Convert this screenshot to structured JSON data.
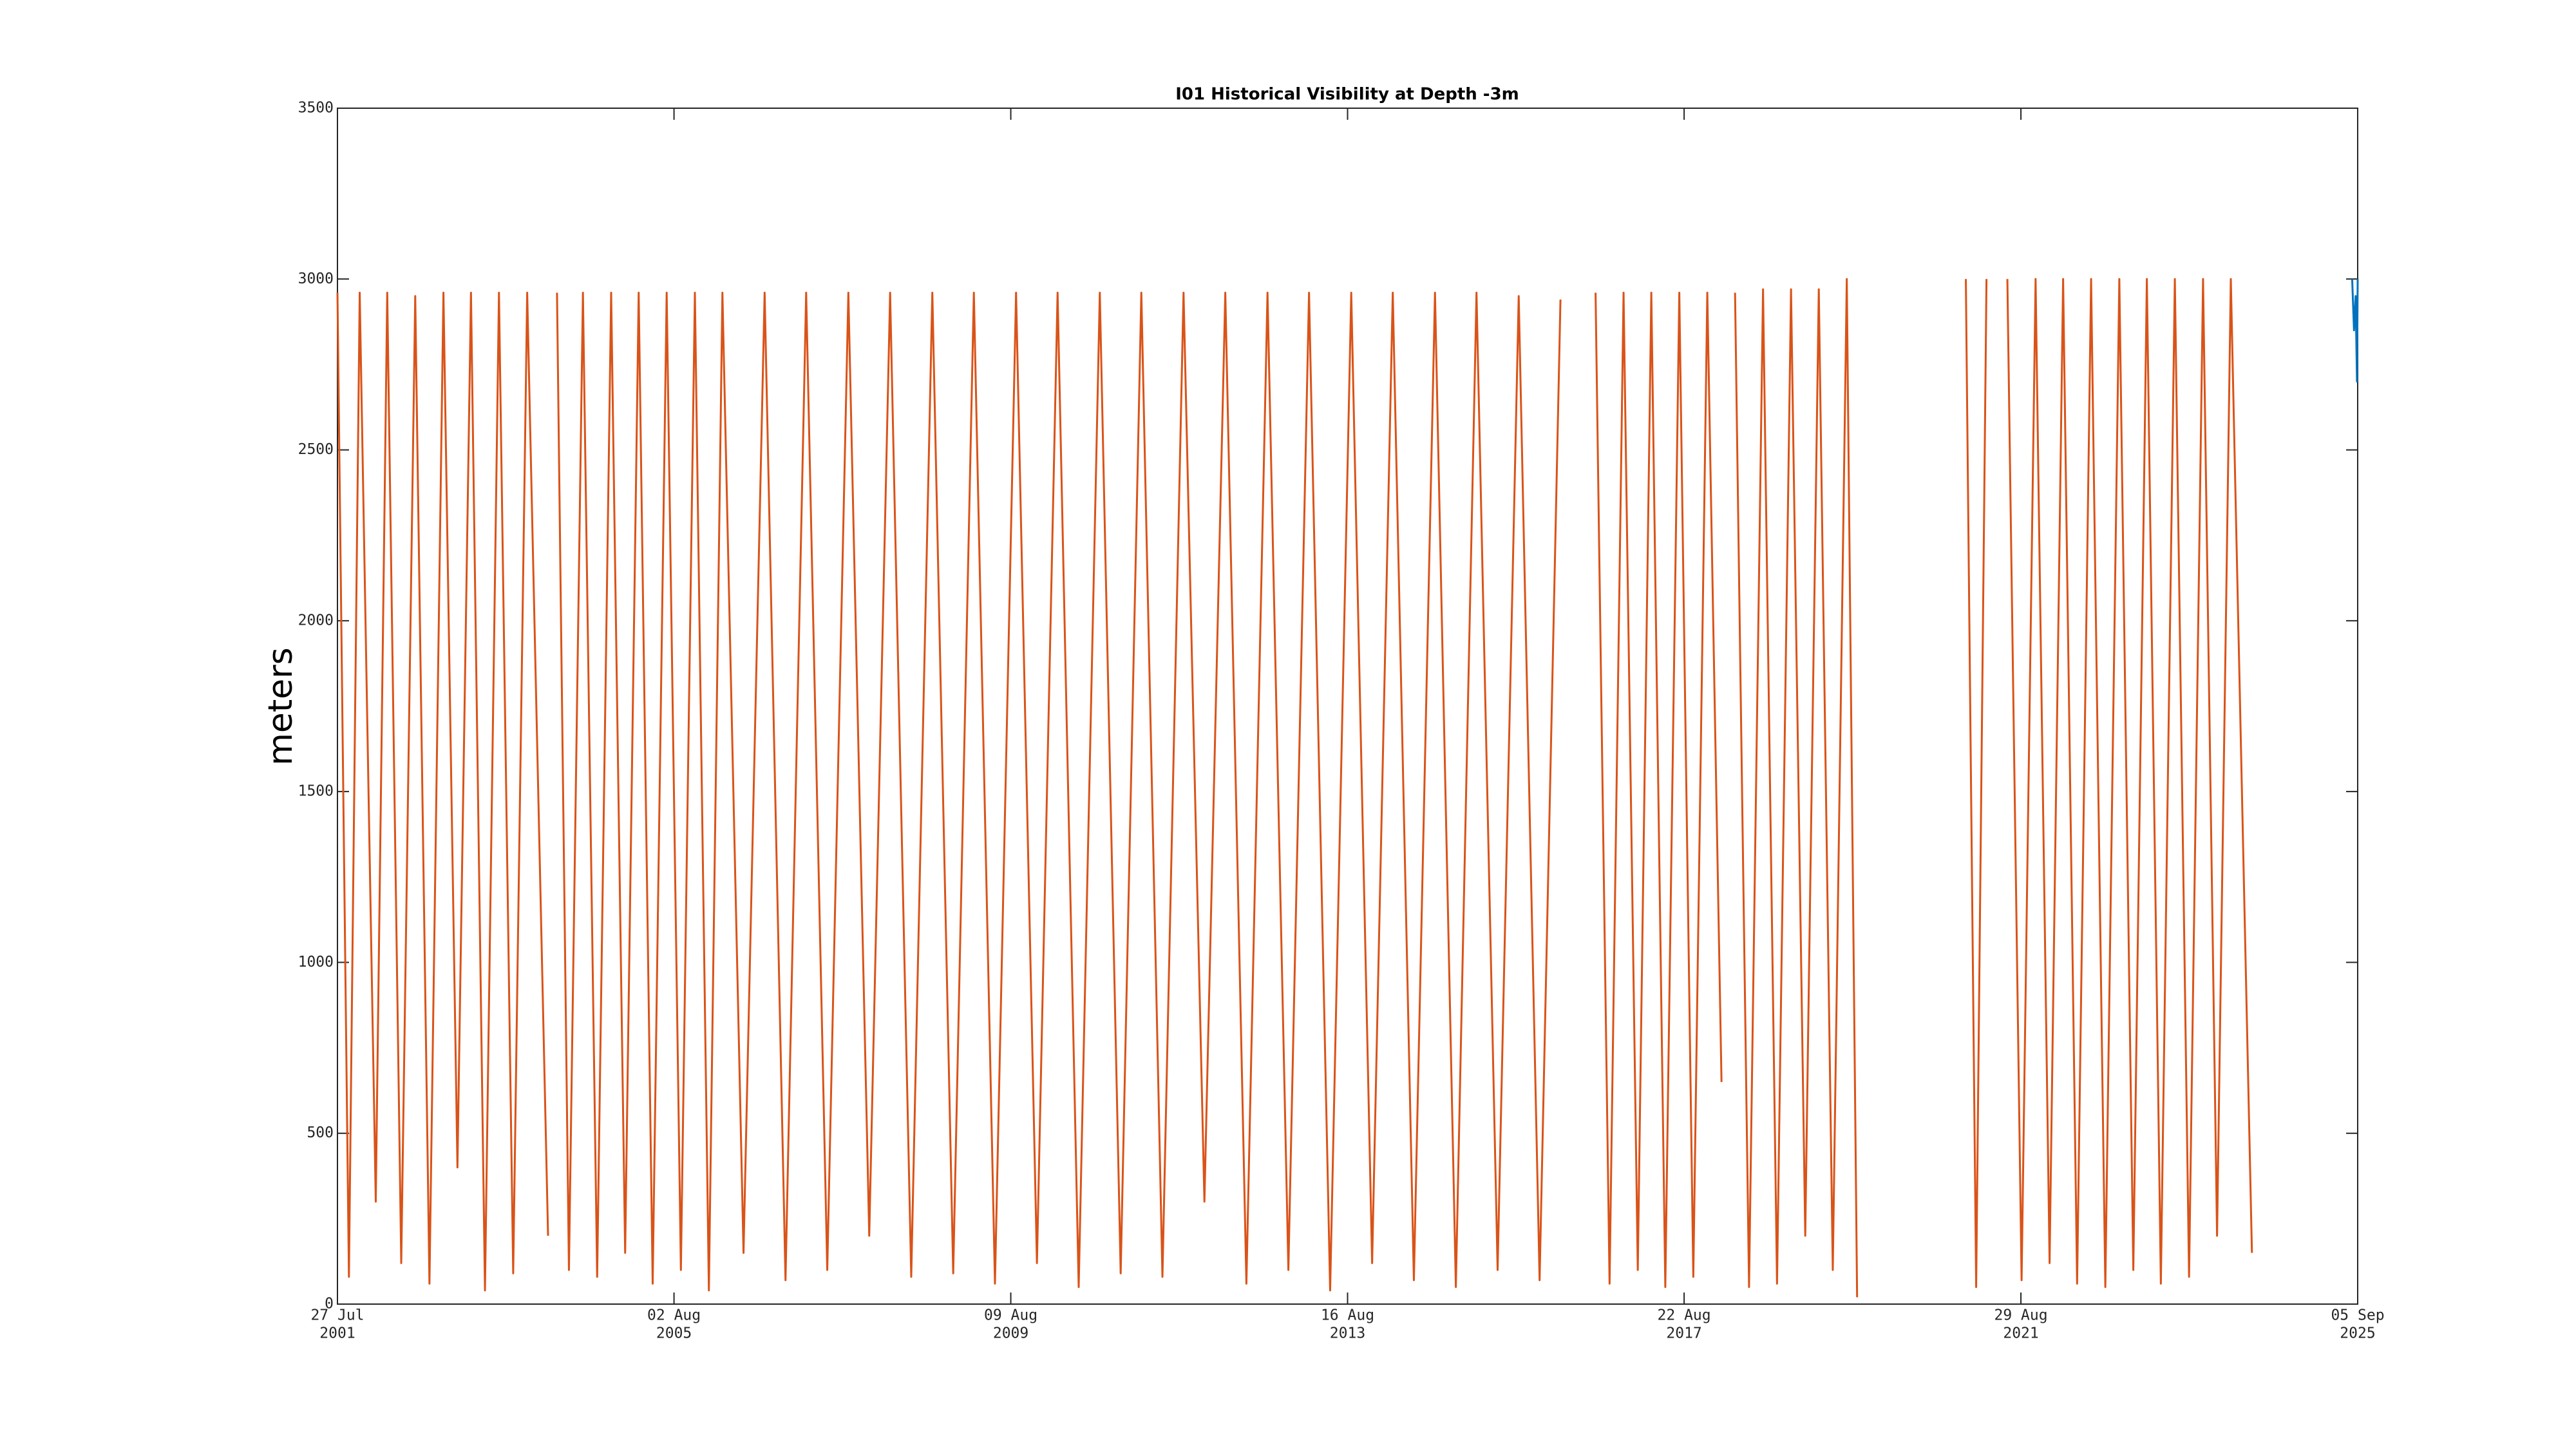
{
  "chart_data": {
    "type": "line",
    "title": "I01 Historical Visibility at Depth -3m",
    "ylabel": "meters",
    "xlim": [
      "2001-07-27",
      "2025-09-05"
    ],
    "xticks": [
      {
        "value": "2001-07-27",
        "label": [
          "27 Jul",
          "2001"
        ]
      },
      {
        "value": "2005-08-02",
        "label": [
          "02 Aug",
          "2005"
        ]
      },
      {
        "value": "2009-08-09",
        "label": [
          "09 Aug",
          "2009"
        ]
      },
      {
        "value": "2013-08-16",
        "label": [
          "16 Aug",
          "2013"
        ]
      },
      {
        "value": "2017-08-22",
        "label": [
          "22 Aug",
          "2017"
        ]
      },
      {
        "value": "2021-08-29",
        "label": [
          "29 Aug",
          "2021"
        ]
      },
      {
        "value": "2025-09-05",
        "label": [
          "05 Sep",
          "2025"
        ]
      }
    ],
    "ylim": [
      0,
      3500
    ],
    "yticks": [
      0,
      500,
      1000,
      1500,
      2000,
      2500,
      3000,
      3500
    ],
    "grid": false,
    "series": [
      {
        "color": "#d95319",
        "x": [
          "2001-07-27",
          "2001-09-15",
          "2001-11-01",
          "2002-01-10",
          "2002-03-01",
          "2002-05-01",
          "2002-07-01",
          "2002-09-01",
          "2002-11-01",
          "2003-01-01",
          "2003-03-01",
          "2003-05-01",
          "2003-07-01",
          "2003-09-01",
          "2003-11-01",
          "2004-01-31",
          "2004-02-20",
          "2004-03-10",
          "2004-05-01",
          "2004-07-01",
          "2004-09-01",
          "2004-11-01",
          "2005-01-01",
          "2005-03-01",
          "2005-05-01",
          "2005-07-01",
          "2005-09-01",
          "2005-11-01",
          "2006-01-01",
          "2006-03-01",
          "2006-06-01",
          "2006-09-01",
          "2006-12-01",
          "2007-03-01",
          "2007-06-01",
          "2007-09-01",
          "2007-12-01",
          "2008-03-01",
          "2008-06-01",
          "2008-09-01",
          "2008-12-01",
          "2009-03-01",
          "2009-06-01",
          "2009-09-01",
          "2009-12-01",
          "2010-03-01",
          "2010-06-01",
          "2010-09-01",
          "2010-12-01",
          "2011-03-01",
          "2011-06-01",
          "2011-09-01",
          "2011-12-01",
          "2012-03-01",
          "2012-06-01",
          "2012-09-01",
          "2012-12-01",
          "2013-03-01",
          "2013-06-01",
          "2013-09-01",
          "2013-12-01",
          "2014-03-01",
          "2014-06-01",
          "2014-09-01",
          "2014-12-01",
          "2015-03-01",
          "2015-06-01",
          "2015-09-01",
          "2015-12-01",
          "2016-03-01",
          "2016-05-01",
          "2016-08-01",
          "2016-10-01",
          "2016-12-01",
          "2017-02-01",
          "2017-04-01",
          "2017-06-01",
          "2017-08-01",
          "2017-10-01",
          "2017-12-01",
          "2018-02-01",
          "2018-03-01",
          "2018-04-01",
          "2018-06-01",
          "2018-08-01",
          "2018-10-01",
          "2018-12-01",
          "2019-02-01",
          "2019-04-01",
          "2019-06-01",
          "2019-08-01",
          "2019-09-15",
          "2019-11-01",
          "2021-01-01",
          "2021-02-15",
          "2021-04-01",
          "2021-05-01",
          "2021-07-01",
          "2021-09-01",
          "2021-11-01",
          "2022-01-01",
          "2022-03-01",
          "2022-05-01",
          "2022-07-01",
          "2022-09-01",
          "2022-11-01",
          "2023-01-01",
          "2023-03-01",
          "2023-05-01",
          "2023-07-01",
          "2023-09-01",
          "2023-11-01",
          "2024-01-01",
          "2024-03-01",
          "2024-06-01"
        ],
        "values": [
          2960,
          80,
          2960,
          300,
          2960,
          120,
          2950,
          60,
          2960,
          400,
          2960,
          40,
          2960,
          90,
          2960,
          200,
          null,
          2960,
          100,
          2960,
          80,
          2960,
          150,
          2960,
          60,
          2960,
          100,
          2960,
          40,
          2960,
          150,
          2960,
          70,
          2960,
          100,
          2960,
          200,
          2960,
          80,
          2960,
          90,
          2960,
          60,
          2960,
          120,
          2960,
          50,
          2960,
          90,
          2960,
          80,
          2960,
          300,
          2960,
          60,
          2960,
          100,
          2960,
          40,
          2960,
          120,
          2960,
          70,
          2960,
          50,
          2960,
          100,
          2950,
          70,
          2940,
          null,
          2960,
          60,
          2960,
          100,
          2960,
          50,
          2960,
          80,
          2960,
          650,
          null,
          2960,
          50,
          2970,
          60,
          2970,
          200,
          2970,
          100,
          3000,
          20,
          null,
          3000,
          50,
          3000,
          null,
          3000,
          70,
          3000,
          120,
          3000,
          60,
          3000,
          50,
          3000,
          100,
          3000,
          60,
          3000,
          80,
          3000,
          200,
          3000,
          150
        ]
      },
      {
        "color": "#0072bd",
        "x": [
          "2025-08-12",
          "2025-08-20",
          "2025-08-27",
          "2025-09-02",
          "2025-09-05"
        ],
        "values": [
          3000,
          2850,
          2950,
          2700,
          3000
        ]
      }
    ]
  }
}
